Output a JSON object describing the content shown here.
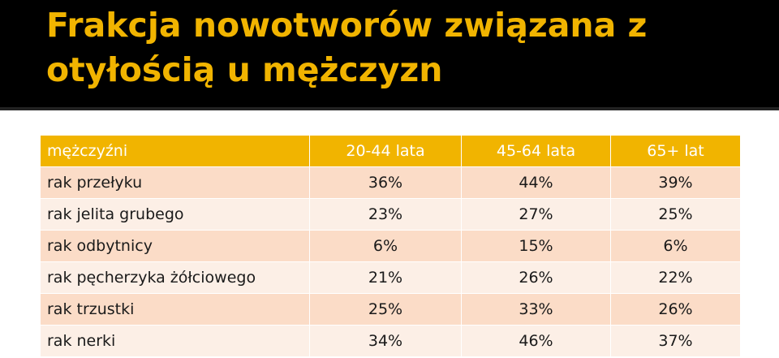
{
  "title": "Frakcja nowotworów związana z otyłością u mężczyzn",
  "colors": {
    "title_bar": "#000000",
    "title_text": "#f1b400",
    "header_bg": "#f1b400",
    "row_odd": "#fbdcc7",
    "row_even": "#fcefe6"
  },
  "table": {
    "headers": [
      "mężczyźni",
      "20-44 lata",
      "45-64 lata",
      "65+ lat"
    ],
    "rows": [
      {
        "label": "rak przełyku",
        "values": [
          "36%",
          "44%",
          "39%"
        ]
      },
      {
        "label": "rak jelita grubego",
        "values": [
          "23%",
          "27%",
          "25%"
        ]
      },
      {
        "label": "rak odbytnicy",
        "values": [
          "6%",
          "15%",
          "6%"
        ]
      },
      {
        "label": "rak pęcherzyka żółciowego",
        "values": [
          "21%",
          "26%",
          "22%"
        ]
      },
      {
        "label": "rak trzustki",
        "values": [
          "25%",
          "33%",
          "26%"
        ]
      },
      {
        "label": "rak nerki",
        "values": [
          "34%",
          "46%",
          "37%"
        ]
      }
    ]
  }
}
